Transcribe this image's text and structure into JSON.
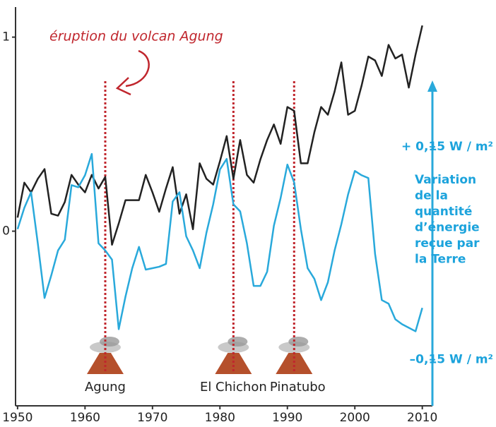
{
  "chart_data": {
    "type": "line",
    "x": [
      1950,
      1951,
      1952,
      1953,
      1954,
      1955,
      1956,
      1957,
      1958,
      1959,
      1960,
      1961,
      1962,
      1963,
      1964,
      1965,
      1966,
      1967,
      1968,
      1969,
      1970,
      1971,
      1972,
      1973,
      1974,
      1975,
      1976,
      1977,
      1978,
      1979,
      1980,
      1981,
      1982,
      1983,
      1984,
      1985,
      1986,
      1987,
      1988,
      1989,
      1990,
      1991,
      1992,
      1993,
      1994,
      1995,
      1996,
      1997,
      1998,
      1999,
      2000,
      2001,
      2002,
      2003,
      2004,
      2005,
      2006,
      2007,
      2008,
      2009,
      2010
    ],
    "series": [
      {
        "color": "#222222",
        "values": [
          0.07,
          0.25,
          0.2,
          0.27,
          0.32,
          0.09,
          0.08,
          0.15,
          0.29,
          0.24,
          0.2,
          0.29,
          0.22,
          0.28,
          -0.07,
          0.04,
          0.16,
          0.16,
          0.16,
          0.29,
          0.2,
          0.1,
          0.22,
          0.33,
          0.09,
          0.19,
          0.01,
          0.35,
          0.27,
          0.24,
          0.36,
          0.49,
          0.27,
          0.47,
          0.29,
          0.25,
          0.37,
          0.47,
          0.55,
          0.45,
          0.64,
          0.62,
          0.35,
          0.35,
          0.51,
          0.64,
          0.6,
          0.72,
          0.87,
          0.6,
          0.62,
          0.75,
          0.9,
          0.88,
          0.8,
          0.96,
          0.89,
          0.91,
          0.74,
          0.91,
          1.06
        ]
      },
      {
        "color": "#29a9db",
        "axis": "y2",
        "values": [
          0.034,
          0.064,
          0.086,
          0.014,
          -0.063,
          -0.031,
          0.004,
          0.019,
          0.096,
          0.093,
          0.11,
          0.14,
          0.014,
          0.004,
          -0.009,
          -0.107,
          -0.061,
          -0.021,
          0.009,
          -0.023,
          -0.021,
          -0.019,
          -0.015,
          0.073,
          0.086,
          0.024,
          0.004,
          -0.021,
          0.029,
          0.069,
          0.118,
          0.133,
          0.069,
          0.059,
          0.014,
          -0.046,
          -0.046,
          -0.026,
          0.039,
          0.078,
          0.125,
          0.1,
          0.034,
          -0.021,
          -0.036,
          -0.066,
          -0.041,
          0.004,
          0.041,
          0.083,
          0.116,
          0.11,
          0.106,
          -0.001,
          -0.066,
          -0.071,
          -0.093,
          -0.1,
          -0.105,
          -0.11,
          -0.077
        ]
      }
    ],
    "xlim": [
      1949.7,
      2011.5
    ],
    "xticks": [
      1950,
      1960,
      1970,
      1980,
      1990,
      2000,
      2010
    ],
    "ylim": [
      -0.9,
      1.155
    ],
    "yticks": [
      0,
      1
    ],
    "y2lim": [
      -0.215,
      0.347
    ],
    "y2ticks": [
      {
        "value": 0.15,
        "label": "+ 0,15 W / m²"
      },
      {
        "value": -0.15,
        "label": "–0,15 W / m²"
      }
    ],
    "y2label": [
      "Variation",
      "de la",
      "quantité",
      "d’énergie",
      "reçue par",
      "la Terre"
    ],
    "events": [
      {
        "x": 1963,
        "label": "Agung"
      },
      {
        "x": 1982,
        "label": "El Chichon"
      },
      {
        "x": 1991,
        "label": "Pinatubo"
      }
    ],
    "annotation": "éruption du volcan Agung"
  }
}
